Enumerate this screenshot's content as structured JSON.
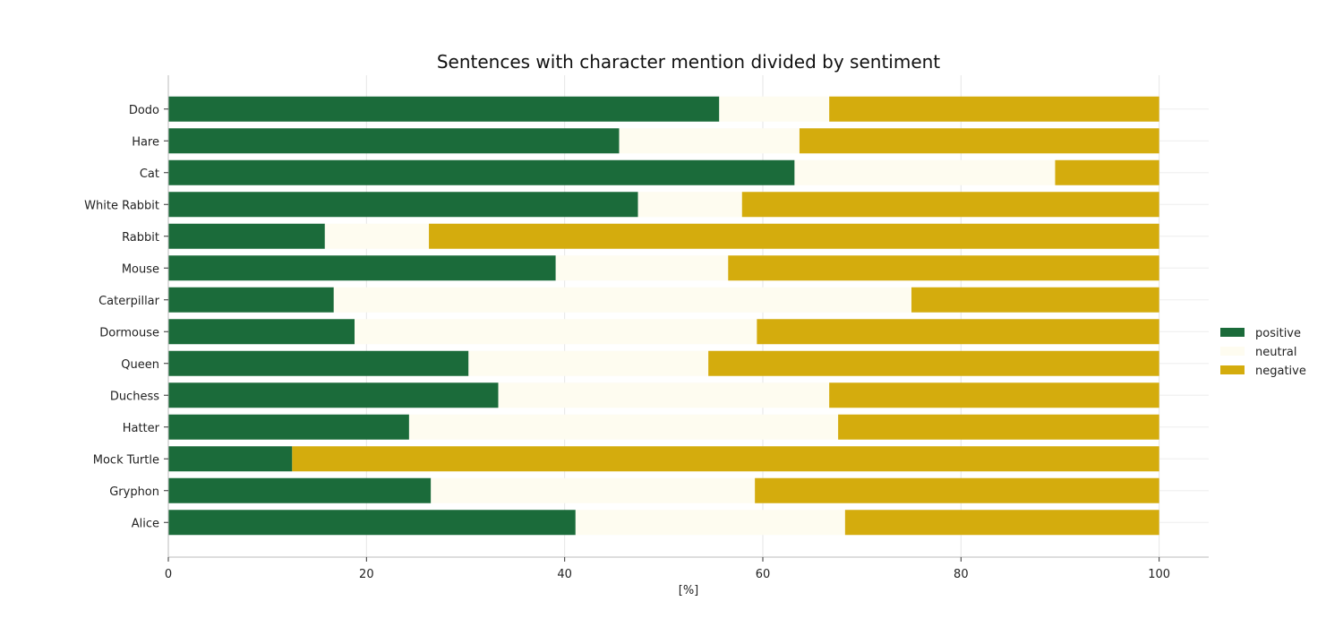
{
  "chart_data": {
    "type": "bar",
    "orientation": "horizontal",
    "stacked": true,
    "title": "Sentences with character mention divided by sentiment",
    "xlabel": "[%]",
    "ylabel": "",
    "xlim": [
      0,
      105
    ],
    "xticks": [
      0,
      20,
      40,
      60,
      80,
      100
    ],
    "grid": true,
    "legend_position": "right",
    "categories": [
      "Dodo",
      "Hare",
      "Cat",
      "White Rabbit",
      "Rabbit",
      "Mouse",
      "Caterpillar",
      "Dormouse",
      "Queen",
      "Duchess",
      "Hatter",
      "Mock Turtle",
      "Gryphon",
      "Alice"
    ],
    "series": [
      {
        "name": "positive",
        "color": "#1b6b3a",
        "values": [
          55.6,
          45.5,
          63.2,
          47.4,
          15.8,
          39.1,
          16.7,
          18.8,
          30.3,
          33.3,
          24.3,
          12.5,
          26.5,
          41.1
        ]
      },
      {
        "name": "neutral",
        "color": "#fefcf0",
        "values": [
          11.1,
          18.2,
          26.3,
          10.5,
          10.5,
          17.4,
          58.3,
          40.6,
          24.2,
          33.4,
          43.3,
          0.0,
          32.7,
          27.2
        ]
      },
      {
        "name": "negative",
        "color": "#d4ac0d",
        "values": [
          33.3,
          36.3,
          10.5,
          42.1,
          73.7,
          43.5,
          25.0,
          40.6,
          45.5,
          33.3,
          32.4,
          87.5,
          40.8,
          31.7
        ]
      }
    ]
  }
}
